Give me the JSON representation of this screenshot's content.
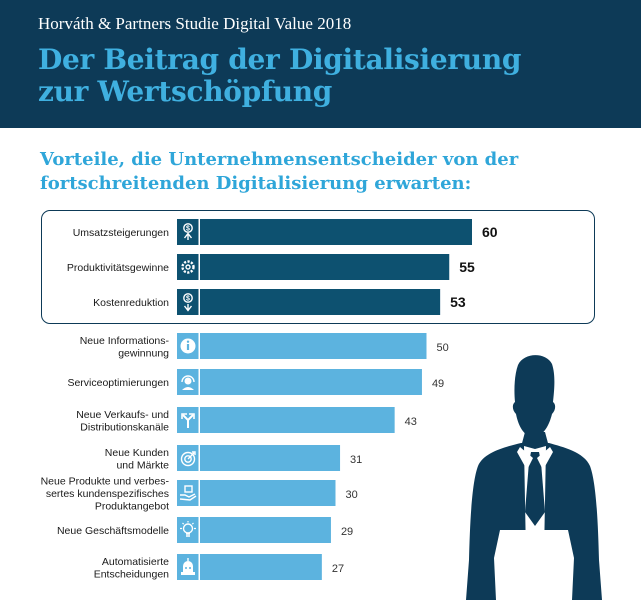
{
  "header": {
    "study": "Horváth & Partners Studie Digital Value 2018",
    "title_line1": "Der Beitrag der Digitalisierung",
    "title_line2": "zur Wertschöpfung"
  },
  "subtitle": {
    "line1": "Vorteile, die Unternehmensentscheider von der",
    "line2": "fortschreitenden Digitalisierung erwarten:"
  },
  "colors": {
    "header_bg": "#0d3a57",
    "title": "#3fb0e0",
    "dark_bar": "#0d5170",
    "light_bar": "#5cb3df",
    "silhouette": "#0d3a57"
  },
  "chart_data": {
    "type": "bar",
    "orientation": "horizontal",
    "categories": [
      "Umsatzsteigerungen",
      "Produktivitätsgewinne",
      "Kostenreduktion",
      "Neue Informations-\ngewinnung",
      "Serviceoptimierungen",
      "Neue Verkaufs- und\nDistributionskanäle",
      "Neue Kunden\nund Märkte",
      "Neue Produkte und verbes-\nsertes kundenspezifisches\nProduktangebot",
      "Neue Geschäftsmodelle",
      "Automatisierte\nEntscheidungen"
    ],
    "values": [
      60,
      55,
      53,
      50,
      49,
      43,
      31,
      30,
      29,
      27
    ],
    "highlighted": [
      true,
      true,
      true,
      false,
      false,
      false,
      false,
      false,
      false,
      false
    ],
    "icons": [
      "dollar-up-icon",
      "gear-icon",
      "dollar-down-icon",
      "info-icon",
      "headset-icon",
      "split-arrows-icon",
      "target-icon",
      "hand-box-icon",
      "lightbulb-icon",
      "robot-icon"
    ],
    "title": "Vorteile, die Unternehmensentscheider von der fortschreitenden Digitalisierung erwarten:",
    "xlim": [
      0,
      60
    ]
  }
}
